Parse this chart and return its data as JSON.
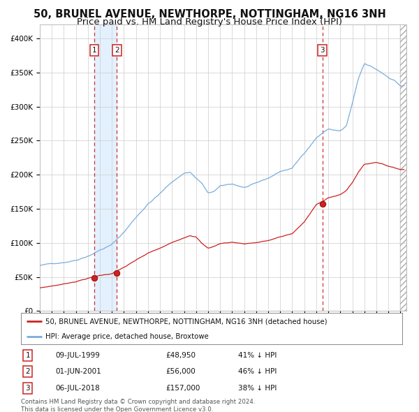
{
  "title": "50, BRUNEL AVENUE, NEWTHORPE, NOTTINGHAM, NG16 3NH",
  "subtitle": "Price paid vs. HM Land Registry's House Price Index (HPI)",
  "ylim": [
    0,
    420000
  ],
  "yticks": [
    0,
    50000,
    100000,
    150000,
    200000,
    250000,
    300000,
    350000,
    400000
  ],
  "ytick_labels": [
    "£0",
    "£50K",
    "£100K",
    "£150K",
    "£200K",
    "£250K",
    "£300K",
    "£350K",
    "£400K"
  ],
  "xlim_start": 1995.0,
  "xlim_end": 2025.5,
  "sale_dates": [
    1999.52,
    2001.41,
    2018.51
  ],
  "sale_prices": [
    48950,
    56000,
    157000
  ],
  "sale_labels": [
    "1",
    "2",
    "3"
  ],
  "sale_info": [
    {
      "num": "1",
      "date": "09-JUL-1999",
      "price": "£48,950",
      "hpi": "41% ↓ HPI"
    },
    {
      "num": "2",
      "date": "01-JUN-2001",
      "price": "£56,000",
      "hpi": "46% ↓ HPI"
    },
    {
      "num": "3",
      "date": "06-JUL-2018",
      "price": "£157,000",
      "hpi": "38% ↓ HPI"
    }
  ],
  "hpi_color": "#7aaddb",
  "sale_line_color": "#cc2222",
  "dashed_line_color": "#cc3333",
  "shade_color": "#ddeeff",
  "legend1": "50, BRUNEL AVENUE, NEWTHORPE, NOTTINGHAM, NG16 3NH (detached house)",
  "legend2": "HPI: Average price, detached house, Broxtowe",
  "footer1": "Contains HM Land Registry data © Crown copyright and database right 2024.",
  "footer2": "This data is licensed under the Open Government Licence v3.0.",
  "bg_color": "#ffffff",
  "grid_color": "#cccccc",
  "title_fontsize": 10.5,
  "subtitle_fontsize": 9.5,
  "hpi_anchors_t": [
    1995,
    1996,
    1997,
    1998,
    1999,
    2000,
    2001,
    2002,
    2003,
    2004,
    2005,
    2006,
    2007,
    2007.5,
    2008,
    2008.5,
    2009,
    2009.5,
    2010,
    2011,
    2012,
    2013,
    2014,
    2015,
    2016,
    2017,
    2018,
    2018.5,
    2019,
    2020,
    2020.5,
    2021,
    2021.5,
    2022,
    2022.5,
    2023,
    2023.5,
    2024,
    2024.5,
    2025
  ],
  "hpi_anchors_v": [
    67000,
    69000,
    72000,
    76000,
    83000,
    92000,
    100000,
    118000,
    140000,
    160000,
    175000,
    192000,
    205000,
    207000,
    198000,
    190000,
    175000,
    178000,
    185000,
    188000,
    183000,
    188000,
    195000,
    205000,
    210000,
    232000,
    255000,
    262000,
    268000,
    265000,
    272000,
    305000,
    340000,
    362000,
    358000,
    353000,
    348000,
    342000,
    338000,
    330000
  ],
  "sale_anchors_t": [
    1995,
    1996,
    1997,
    1998,
    1999,
    2000,
    2001,
    2002,
    2003,
    2004,
    2005,
    2006,
    2007,
    2007.5,
    2008,
    2008.5,
    2009,
    2009.5,
    2010,
    2011,
    2012,
    2013,
    2014,
    2015,
    2016,
    2017,
    2018,
    2018.5,
    2019,
    2020,
    2020.5,
    2021,
    2021.5,
    2022,
    2022.5,
    2023,
    2023.5,
    2024,
    2024.5,
    2025
  ],
  "sale_anchors_v": [
    34000,
    37000,
    40000,
    44000,
    48950,
    53000,
    56000,
    65000,
    75000,
    85000,
    92000,
    100000,
    108000,
    112000,
    110000,
    100000,
    93000,
    96000,
    100000,
    102000,
    100000,
    102000,
    105000,
    110000,
    115000,
    132000,
    157000,
    162000,
    168000,
    172000,
    178000,
    190000,
    205000,
    217000,
    218000,
    220000,
    218000,
    215000,
    212000,
    210000
  ]
}
